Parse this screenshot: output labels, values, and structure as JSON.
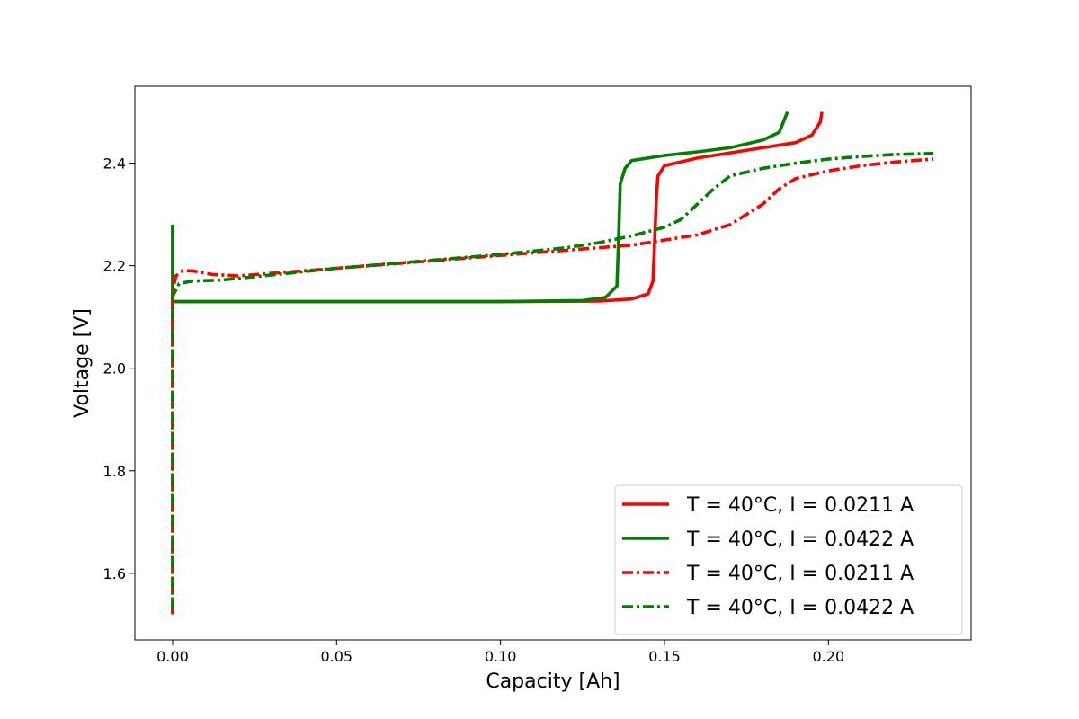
{
  "chart_data": {
    "type": "line",
    "title": "",
    "xlabel": "Capacity [Ah]",
    "ylabel": "Voltage [V]",
    "xlim": [
      -0.0115,
      0.2435
    ],
    "ylim": [
      1.47,
      2.55
    ],
    "xticks": [
      0.0,
      0.05,
      0.1,
      0.15,
      0.2
    ],
    "xtick_labels": [
      "0.00",
      "0.05",
      "0.10",
      "0.15",
      "0.20"
    ],
    "yticks": [
      1.6,
      1.8,
      2.0,
      2.2,
      2.4
    ],
    "ytick_labels": [
      "1.6",
      "1.8",
      "2.0",
      "2.2",
      "2.4"
    ],
    "grid": false,
    "legend_position": "bottom-right",
    "series": [
      {
        "name": "T = 40$^\\circ$C, I = 0.0211 A",
        "label": "T = 40°C, I = 0.0211 A",
        "color": "#ff0000",
        "style": "solid",
        "points": [
          [
            0.0,
            2.06
          ],
          [
            0.0,
            2.13
          ],
          [
            0.01,
            2.13
          ],
          [
            0.05,
            2.13
          ],
          [
            0.1,
            2.13
          ],
          [
            0.13,
            2.131
          ],
          [
            0.14,
            2.135
          ],
          [
            0.145,
            2.145
          ],
          [
            0.1465,
            2.17
          ],
          [
            0.147,
            2.25
          ],
          [
            0.1475,
            2.33
          ],
          [
            0.148,
            2.375
          ],
          [
            0.15,
            2.395
          ],
          [
            0.16,
            2.41
          ],
          [
            0.17,
            2.42
          ],
          [
            0.18,
            2.43
          ],
          [
            0.19,
            2.44
          ],
          [
            0.195,
            2.455
          ],
          [
            0.1975,
            2.48
          ],
          [
            0.198,
            2.5
          ]
        ]
      },
      {
        "name": "T = 40$^\\circ$C, I = 0.0422 A",
        "label": "T = 40°C, I = 0.0422 A",
        "color": "#008000",
        "style": "solid",
        "points": [
          [
            0.0,
            2.28
          ],
          [
            0.0,
            2.13
          ],
          [
            0.01,
            2.13
          ],
          [
            0.05,
            2.13
          ],
          [
            0.1,
            2.13
          ],
          [
            0.125,
            2.132
          ],
          [
            0.132,
            2.138
          ],
          [
            0.1355,
            2.16
          ],
          [
            0.136,
            2.25
          ],
          [
            0.1365,
            2.36
          ],
          [
            0.138,
            2.39
          ],
          [
            0.14,
            2.405
          ],
          [
            0.15,
            2.415
          ],
          [
            0.16,
            2.422
          ],
          [
            0.17,
            2.43
          ],
          [
            0.18,
            2.445
          ],
          [
            0.185,
            2.46
          ],
          [
            0.1875,
            2.5
          ]
        ]
      },
      {
        "name": "T = 40$^\\circ$C, I = 0.0211 A",
        "label": "T = 40°C, I = 0.0211 A",
        "color": "#ff0000",
        "style": "dashdot",
        "points": [
          [
            0.0,
            1.52
          ],
          [
            0.0,
            2.15
          ],
          [
            0.001,
            2.18
          ],
          [
            0.003,
            2.19
          ],
          [
            0.006,
            2.19
          ],
          [
            0.012,
            2.183
          ],
          [
            0.02,
            2.18
          ],
          [
            0.05,
            2.195
          ],
          [
            0.1,
            2.22
          ],
          [
            0.12,
            2.23
          ],
          [
            0.14,
            2.24
          ],
          [
            0.15,
            2.25
          ],
          [
            0.16,
            2.26
          ],
          [
            0.17,
            2.28
          ],
          [
            0.18,
            2.32
          ],
          [
            0.185,
            2.35
          ],
          [
            0.19,
            2.37
          ],
          [
            0.2,
            2.385
          ],
          [
            0.21,
            2.395
          ],
          [
            0.22,
            2.402
          ],
          [
            0.232,
            2.408
          ]
        ]
      },
      {
        "name": "T = 40$^\\circ$C, I = 0.0422 A",
        "label": "T = 40°C, I = 0.0422 A",
        "color": "#008000",
        "style": "dashdot",
        "points": [
          [
            0.0,
            1.53
          ],
          [
            0.0,
            2.14
          ],
          [
            0.002,
            2.165
          ],
          [
            0.006,
            2.17
          ],
          [
            0.015,
            2.172
          ],
          [
            0.05,
            2.195
          ],
          [
            0.1,
            2.222
          ],
          [
            0.12,
            2.235
          ],
          [
            0.13,
            2.245
          ],
          [
            0.14,
            2.258
          ],
          [
            0.15,
            2.275
          ],
          [
            0.155,
            2.29
          ],
          [
            0.16,
            2.32
          ],
          [
            0.165,
            2.35
          ],
          [
            0.17,
            2.375
          ],
          [
            0.18,
            2.39
          ],
          [
            0.19,
            2.4
          ],
          [
            0.2,
            2.408
          ],
          [
            0.21,
            2.413
          ],
          [
            0.22,
            2.417
          ],
          [
            0.232,
            2.419
          ]
        ]
      }
    ]
  }
}
